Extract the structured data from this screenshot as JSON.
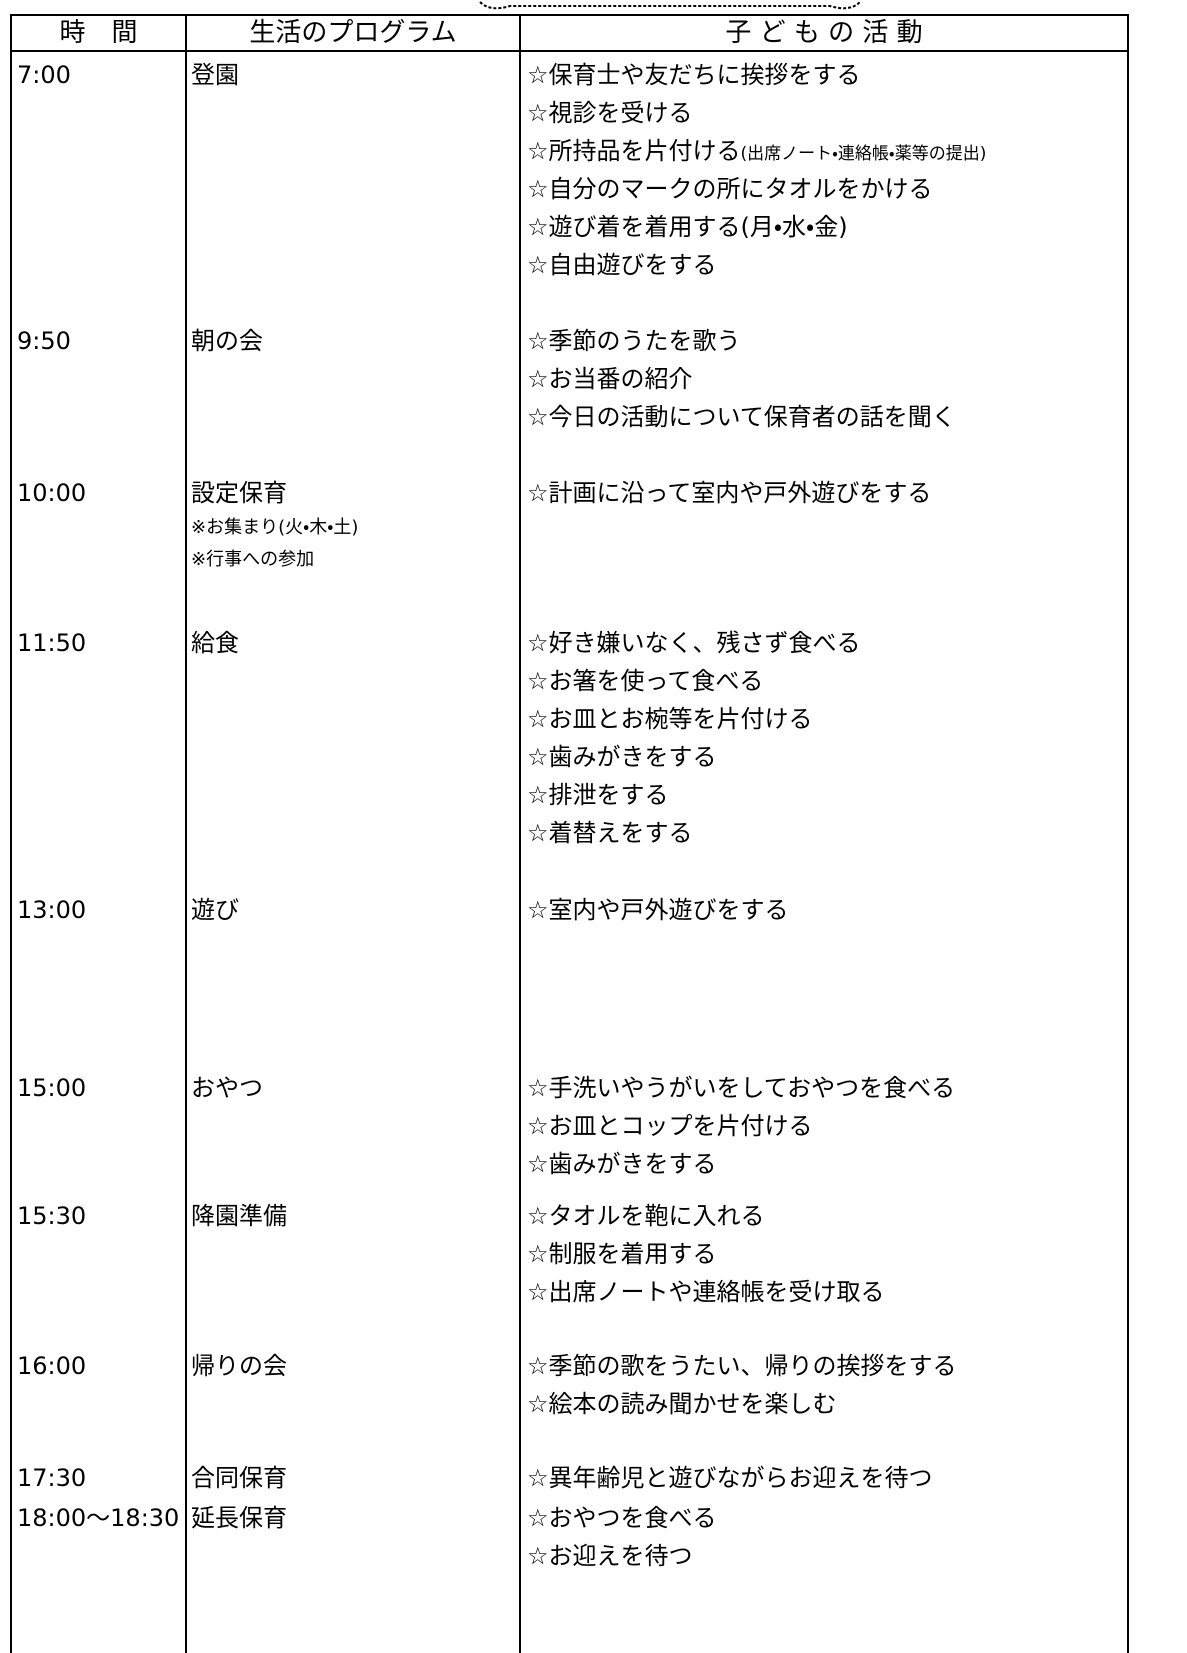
{
  "table": {
    "headers": [
      "時　間",
      "生活のプログラム",
      "子 ど も の 活 動"
    ],
    "rows": [
      {
        "time": "7:00",
        "program": "登園",
        "activities": [
          "☆保育士や友だちに挨拶をする",
          "☆視診を受ける",
          {
            "text": "☆所持品を片付ける",
            "note": "(出席ノート・連絡帳・薬等の提出)"
          },
          "☆自分のマークの所にタオルをかける",
          "☆遊び着を着用する(月・水・金)",
          "☆自由遊びをする"
        ]
      },
      {
        "time": "9:50",
        "program": "朝の会",
        "activities": [
          "☆季節のうたを歌う",
          "☆お当番の紹介",
          "☆今日の活動について保育者の話を聞く"
        ]
      },
      {
        "time": "10:00",
        "program": "設定保育",
        "notes": [
          "※お集まり(火・木・土)",
          "※行事への参加"
        ],
        "activities": [
          "☆計画に沿って室内や戸外遊びをする"
        ]
      },
      {
        "time": "11:50",
        "program": "給食",
        "activities": [
          "☆好き嫌いなく、残さず食べる",
          "☆お箸を使って食べる",
          "☆お皿とお椀等を片付ける",
          "☆歯みがきをする",
          "☆排泄をする",
          "☆着替えをする"
        ]
      },
      {
        "time": "13:00",
        "program": "遊び",
        "activities": [
          "☆室内や戸外遊びをする"
        ]
      },
      {
        "time": "15:00",
        "program": "おやつ",
        "activities": [
          "☆手洗いやうがいをしておやつを食べる",
          "☆お皿とコップを片付ける",
          "☆歯みがきをする"
        ]
      },
      {
        "time": "15:30",
        "program": "降園準備",
        "activities": [
          "☆タオルを鞄に入れる",
          "☆制服を着用する",
          "☆出席ノートや連絡帳を受け取る"
        ]
      },
      {
        "time": "16:00",
        "program": "帰りの会",
        "activities": [
          "☆季節の歌をうたい、帰りの挨拶をする",
          "☆絵本の読み聞かせを楽しむ"
        ]
      },
      {
        "time": "17:30",
        "program": "合同保育",
        "activities": [
          "☆異年齢児と遊びながらお迎えを待つ"
        ]
      },
      {
        "time": "18:00～18:30",
        "program": "延長保育",
        "activities": [
          "☆おやつを食べる",
          "☆お迎えを待つ"
        ]
      }
    ]
  }
}
